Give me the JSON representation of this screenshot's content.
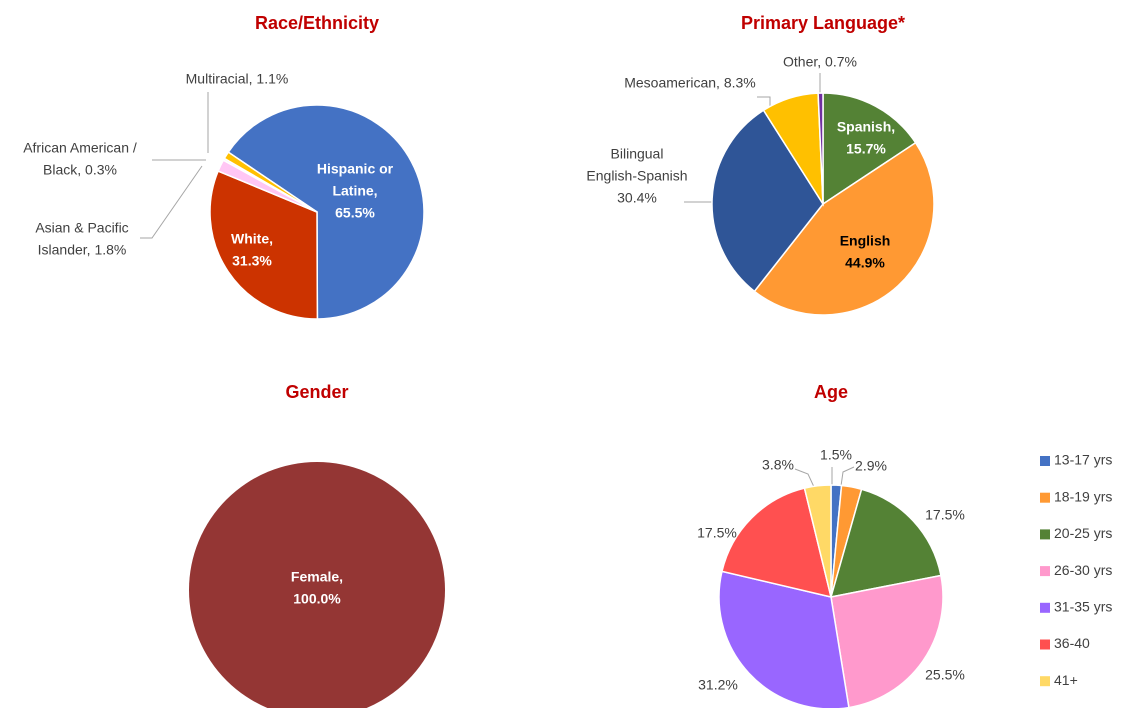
{
  "chart_data": [
    {
      "type": "pie",
      "title": "Race/Ethnicity",
      "categories": [
        "Hispanic or Latine",
        "White",
        "Asian & Pacific Islander",
        "African American / Black",
        "Multiracial"
      ],
      "values": [
        65.5,
        31.3,
        1.8,
        0.3,
        1.1
      ],
      "value_labels": [
        [
          "Hispanic or",
          "Latine,",
          "65.5%"
        ],
        [
          "White,",
          "31.3%"
        ],
        [
          "Asian & Pacific",
          "Islander, 1.8%"
        ],
        [
          "African American /",
          "Black, 0.3%"
        ],
        [
          "Multiracial, 1.1%"
        ]
      ],
      "colors": [
        "#4472c4",
        "#cc3300",
        "#ffc6f4",
        "#f2f2f2",
        "#ffc000"
      ]
    },
    {
      "type": "pie",
      "title": "Primary Language*",
      "categories": [
        "Spanish",
        "English",
        "Bilingual English-Spanish",
        "Mesoamerican",
        "Other"
      ],
      "values": [
        15.7,
        44.9,
        30.4,
        8.3,
        0.7
      ],
      "value_labels": [
        [
          "Spanish,",
          "15.7%"
        ],
        [
          "English",
          "44.9%"
        ],
        [
          "Bilingual",
          "English-Spanish",
          "30.4%"
        ],
        [
          "Mesoamerican, 8.3%"
        ],
        [
          "Other, 0.7%"
        ]
      ],
      "colors": [
        "#548235",
        "#ff9933",
        "#2f5597",
        "#ffc000",
        "#7030a0"
      ]
    },
    {
      "type": "pie",
      "title": "Gender",
      "categories": [
        "Female"
      ],
      "values": [
        100.0
      ],
      "value_labels": [
        [
          "Female,",
          "100.0%"
        ]
      ],
      "colors": [
        "#943634"
      ]
    },
    {
      "type": "pie",
      "title": "Age",
      "categories": [
        "13-17 yrs",
        "18-19 yrs",
        "20-25 yrs",
        "26-30 yrs",
        "31-35 yrs",
        "36-40",
        "41+"
      ],
      "values": [
        1.5,
        2.9,
        17.5,
        25.5,
        31.2,
        17.5,
        3.8
      ],
      "value_labels": [
        "1.5%",
        "2.9%",
        "17.5%",
        "25.5%",
        "31.2%",
        "17.5%",
        "3.8%"
      ],
      "colors": [
        "#4472c4",
        "#ff9933",
        "#548235",
        "#ff99cc",
        "#9966ff",
        "#ff5050",
        "#ffd966"
      ],
      "legend": "right"
    }
  ]
}
